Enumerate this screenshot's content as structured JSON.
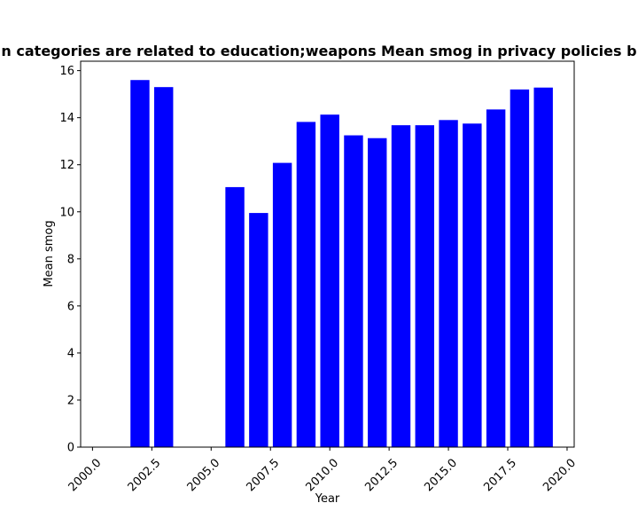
{
  "chart_data": {
    "type": "bar",
    "title": "n categories are related to education;weapons Mean smog in privacy policies b",
    "xlabel": "Year",
    "ylabel": "Mean smog",
    "xlim": [
      1999.5,
      2020.3
    ],
    "ylim": [
      0,
      16.4
    ],
    "bar_width": 0.8,
    "bar_color": "#0000ff",
    "x": [
      2002,
      2003,
      2006,
      2007,
      2008,
      2009,
      2010,
      2011,
      2012,
      2013,
      2014,
      2015,
      2016,
      2017,
      2018,
      2019
    ],
    "values": [
      15.6,
      15.3,
      11.05,
      9.95,
      12.08,
      13.82,
      14.13,
      13.25,
      13.13,
      13.68,
      13.68,
      13.9,
      13.75,
      14.35,
      15.2,
      15.28
    ],
    "x_ticks": [
      "2000.0",
      "2002.5",
      "2005.0",
      "2007.5",
      "2010.0",
      "2012.5",
      "2015.0",
      "2017.5",
      "2020.0"
    ],
    "x_tick_values": [
      2000,
      2002.5,
      2005,
      2007.5,
      2010,
      2012.5,
      2015,
      2017.5,
      2020
    ],
    "y_ticks": [
      "0",
      "2",
      "4",
      "6",
      "8",
      "10",
      "12",
      "14",
      "16"
    ],
    "y_tick_values": [
      0,
      2,
      4,
      6,
      8,
      10,
      12,
      14,
      16
    ],
    "grid": false,
    "legend": "none"
  }
}
